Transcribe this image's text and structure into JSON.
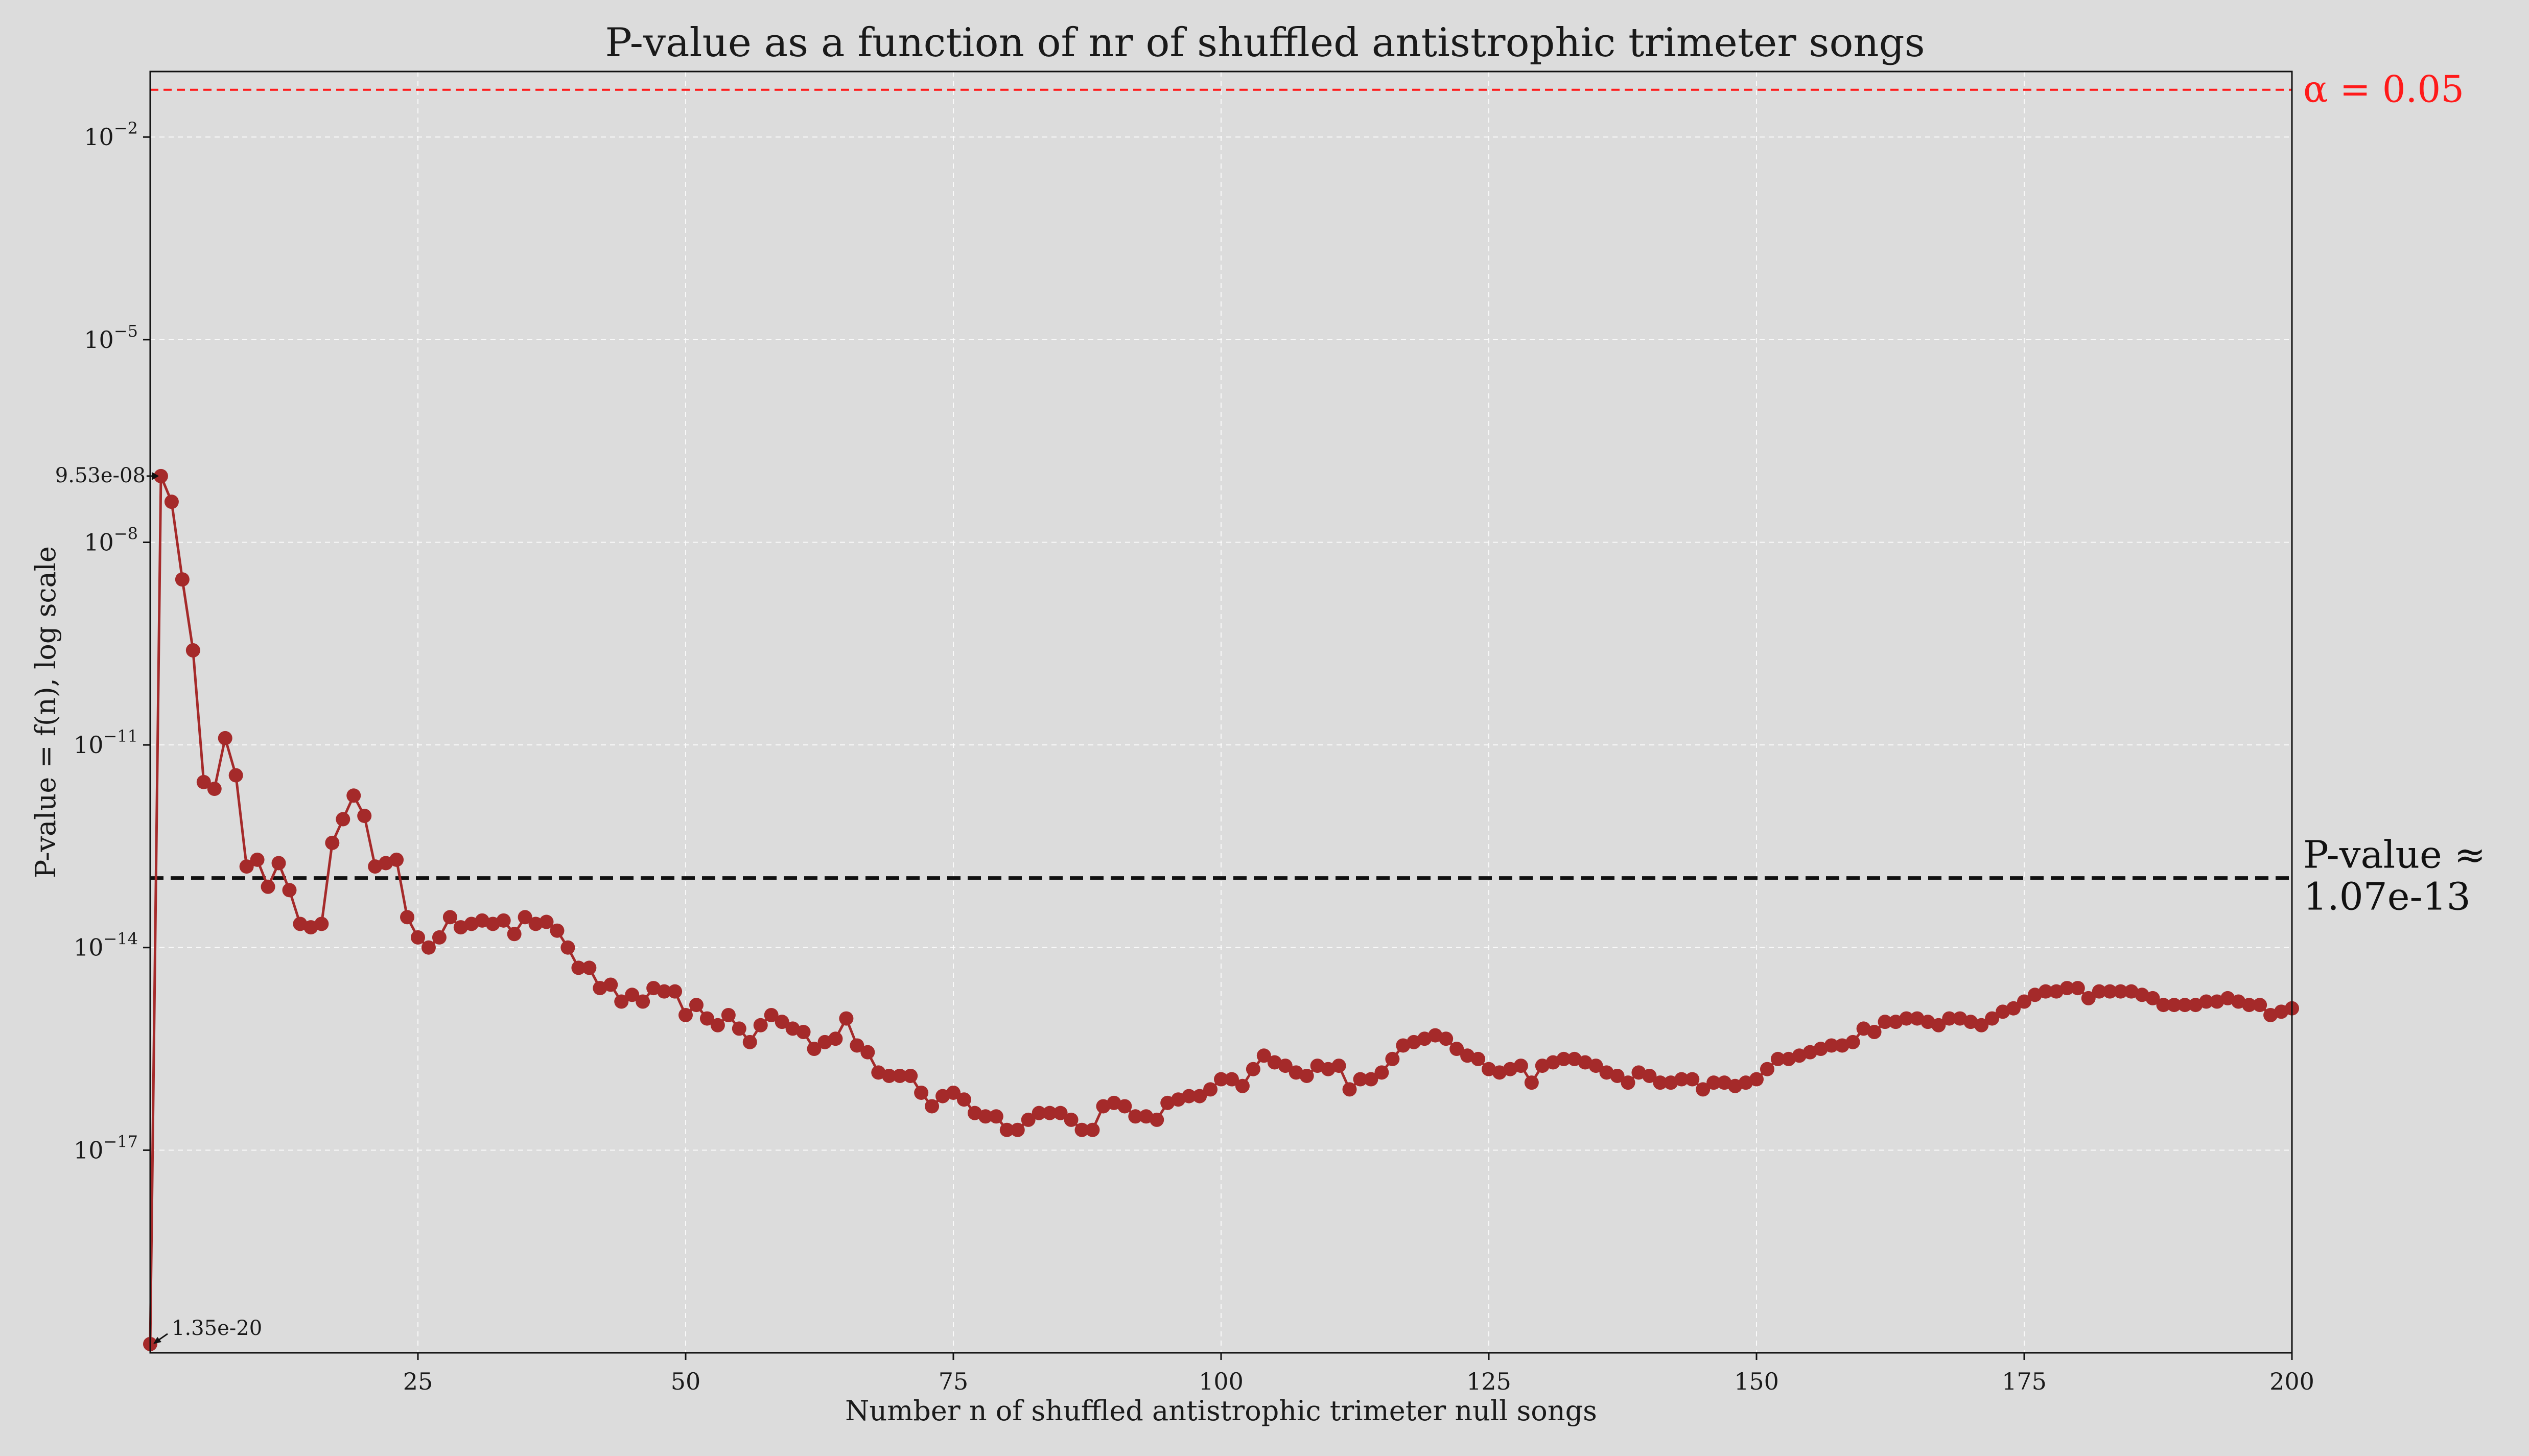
{
  "chart_data": {
    "type": "line",
    "title": "P-value as a function of nr of shuffled antistrophic trimeter songs",
    "xlabel": "Number n of shuffled antistrophic trimeter null songs",
    "ylabel": "P-value = f(n), log scale",
    "xlim": [
      0,
      200
    ],
    "ylim_log10": [
      -20,
      -1.03
    ],
    "log_y": true,
    "grid": true,
    "x_ticks": [
      25,
      50,
      75,
      100,
      125,
      150,
      175,
      200
    ],
    "x_tick_labels": [
      "25",
      "50",
      "75",
      "100",
      "125",
      "150",
      "175",
      "200"
    ],
    "y_ticks_exponent": [
      -17,
      -14,
      -11,
      -8,
      -5,
      -2
    ],
    "y_tick_base": "10",
    "y_tick_exponent_labels": [
      "−17",
      "−14",
      "−11",
      "−8",
      "−5",
      "−2"
    ],
    "series": [
      {
        "color": "#a52a2a",
        "x": [
          0,
          1,
          2,
          3,
          4,
          5,
          6,
          7,
          8,
          9,
          10,
          11,
          12,
          13,
          14,
          15,
          16,
          17,
          18,
          19,
          20,
          21,
          22,
          23,
          24,
          25,
          26,
          27,
          28,
          29,
          30,
          31,
          32,
          33,
          34,
          35,
          36,
          37,
          38,
          39,
          40,
          41,
          42,
          43,
          44,
          45,
          46,
          47,
          48,
          49,
          50,
          51,
          52,
          53,
          54,
          55,
          56,
          57,
          58,
          59,
          60,
          61,
          62,
          63,
          64,
          65,
          66,
          67,
          68,
          69,
          70,
          71,
          72,
          73,
          74,
          75,
          76,
          77,
          78,
          79,
          80,
          81,
          82,
          83,
          84,
          85,
          86,
          87,
          88,
          89,
          90,
          91,
          92,
          93,
          94,
          95,
          96,
          97,
          98,
          99,
          100,
          101,
          102,
          103,
          104,
          105,
          106,
          107,
          108,
          109,
          110,
          111,
          112,
          113,
          114,
          115,
          116,
          117,
          118,
          119,
          120,
          121,
          122,
          123,
          124,
          125,
          126,
          127,
          128,
          129,
          130,
          131,
          132,
          133,
          134,
          135,
          136,
          137,
          138,
          139,
          140,
          141,
          142,
          143,
          144,
          145,
          146,
          147,
          148,
          149,
          150,
          151,
          152,
          153,
          154,
          155,
          156,
          157,
          158,
          159,
          160,
          161,
          162,
          163,
          164,
          165,
          166,
          167,
          168,
          169,
          170,
          171,
          172,
          173,
          174,
          175,
          176,
          177,
          178,
          179,
          180,
          181,
          182,
          183,
          184,
          185,
          186,
          187,
          188,
          189,
          190,
          191,
          192,
          193,
          194,
          195,
          196,
          197,
          198,
          199,
          200
        ],
        "log10_p": [
          -19.87,
          -7.02,
          -7.4,
          -8.55,
          -9.6,
          -11.55,
          -11.65,
          -10.9,
          -11.45,
          -12.8,
          -12.7,
          -13.1,
          -12.75,
          -13.15,
          -13.65,
          -13.7,
          -13.65,
          -12.45,
          -12.1,
          -11.75,
          -12.05,
          -12.8,
          -12.75,
          -12.7,
          -13.55,
          -13.85,
          -14.0,
          -13.85,
          -13.55,
          -13.7,
          -13.65,
          -13.6,
          -13.65,
          -13.6,
          -13.8,
          -13.55,
          -13.65,
          -13.62,
          -13.75,
          -14.0,
          -14.3,
          -14.3,
          -14.6,
          -14.55,
          -14.8,
          -14.7,
          -14.8,
          -14.6,
          -14.65,
          -14.65,
          -15.0,
          -14.85,
          -15.05,
          -15.15,
          -15.0,
          -15.2,
          -15.4,
          -15.15,
          -15.0,
          -15.1,
          -15.2,
          -15.25,
          -15.5,
          -15.4,
          -15.35,
          -15.05,
          -15.45,
          -15.55,
          -15.85,
          -15.9,
          -15.9,
          -15.9,
          -16.15,
          -16.35,
          -16.2,
          -16.15,
          -16.25,
          -16.45,
          -16.5,
          -16.5,
          -16.7,
          -16.7,
          -16.55,
          -16.45,
          -16.45,
          -16.45,
          -16.55,
          -16.7,
          -16.7,
          -16.35,
          -16.3,
          -16.35,
          -16.5,
          -16.5,
          -16.55,
          -16.3,
          -16.25,
          -16.2,
          -16.2,
          -16.1,
          -15.95,
          -15.95,
          -16.05,
          -15.8,
          -15.6,
          -15.7,
          -15.75,
          -15.85,
          -15.9,
          -15.75,
          -15.8,
          -15.75,
          -16.1,
          -15.95,
          -15.95,
          -15.85,
          -15.65,
          -15.45,
          -15.4,
          -15.35,
          -15.3,
          -15.35,
          -15.5,
          -15.6,
          -15.65,
          -15.8,
          -15.85,
          -15.8,
          -15.75,
          -16.0,
          -15.75,
          -15.7,
          -15.65,
          -15.65,
          -15.7,
          -15.75,
          -15.85,
          -15.9,
          -16.0,
          -15.85,
          -15.9,
          -16.0,
          -16.0,
          -15.95,
          -15.95,
          -16.1,
          -16.0,
          -16.0,
          -16.05,
          -16.0,
          -15.95,
          -15.8,
          -15.65,
          -15.65,
          -15.6,
          -15.55,
          -15.5,
          -15.45,
          -15.45,
          -15.4,
          -15.2,
          -15.25,
          -15.1,
          -15.1,
          -15.05,
          -15.05,
          -15.1,
          -15.15,
          -15.05,
          -15.05,
          -15.1,
          -15.15,
          -15.05,
          -14.95,
          -14.9,
          -14.8,
          -14.7,
          -14.65,
          -14.65,
          -14.6,
          -14.6,
          -14.75,
          -14.65,
          -14.65,
          -14.65,
          -14.65,
          -14.7,
          -14.75,
          -14.85,
          -14.85,
          -14.85,
          -14.85,
          -14.8,
          -14.8,
          -14.75,
          -14.8,
          -14.85,
          -14.85,
          -15.0,
          -14.95,
          -14.9
        ]
      }
    ],
    "reference_lines": [
      {
        "log10_y": -1.3,
        "color": "#ff1a1a",
        "style": "dashed",
        "label": "α = 0.05"
      },
      {
        "log10_y": -12.97,
        "color": "#111111",
        "style": "dashed",
        "label_line1": "P-value ≈",
        "label_line2": "1.07e-13"
      }
    ],
    "annotations": [
      {
        "text": "9.53e-08",
        "x": 1,
        "log10_y": -7.02
      },
      {
        "text": "1.35e-20",
        "x": 0,
        "log10_y": -19.87
      }
    ]
  }
}
